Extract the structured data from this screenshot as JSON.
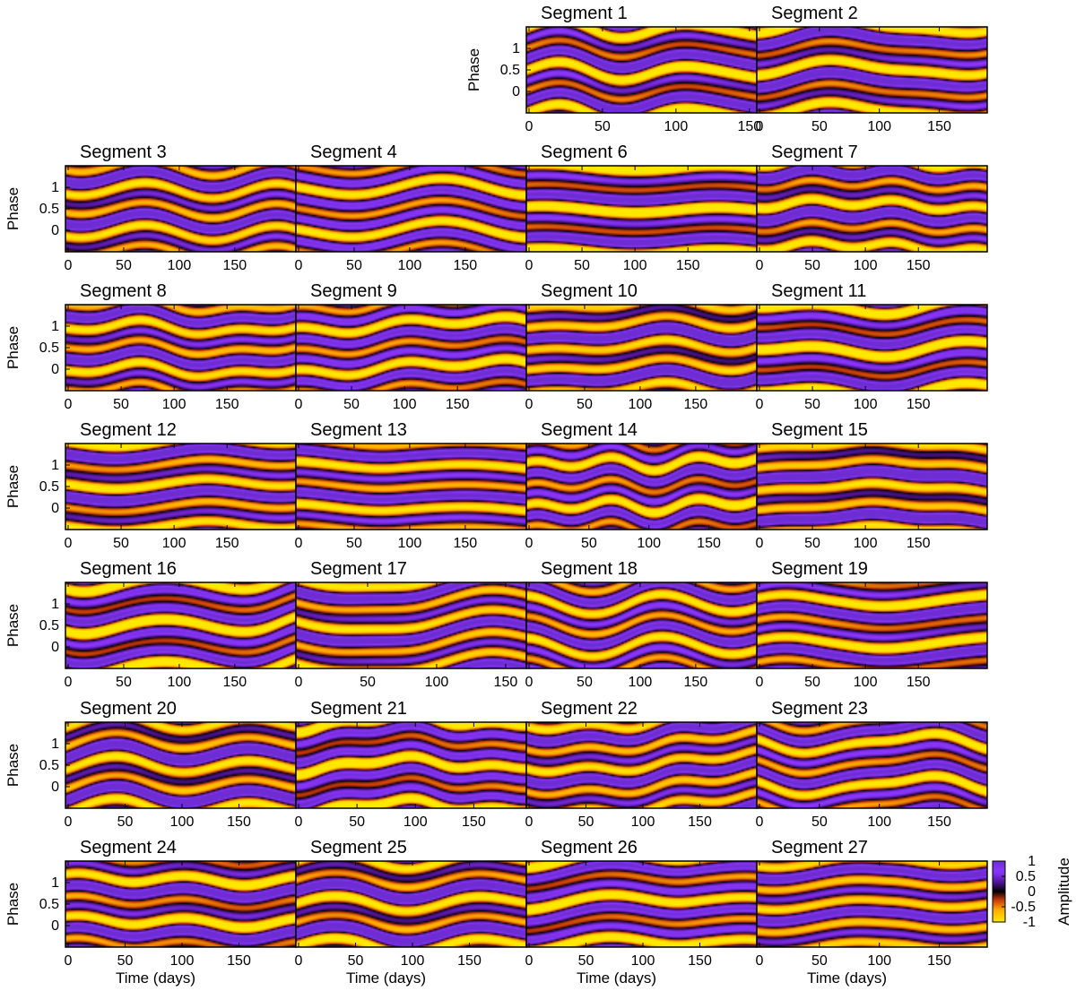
{
  "chart_data": {
    "type": "heatmap",
    "ylabel": "Phase",
    "xlabel": "Time (days)",
    "yticks": [
      0,
      0.5,
      1
    ],
    "ylim": [
      -0.5,
      1.5
    ],
    "colorbar": {
      "label": "Amplitude",
      "ticks": [
        1,
        0.5,
        0,
        -0.5,
        -1
      ],
      "range": [
        -1,
        1
      ],
      "colormap": [
        "#ffe000",
        "#ff9a00",
        "#b02a00",
        "#000000",
        "#4a1080",
        "#8a33ff",
        "#6a2fd0"
      ]
    },
    "panels": [
      {
        "title": "Segment 1",
        "row": 0,
        "col": 2,
        "duration": 155,
        "xticks": [
          0,
          50,
          100,
          150
        ],
        "show_ylabel": true,
        "show_xlabel": false,
        "seed": 1
      },
      {
        "title": "Segment 2",
        "row": 0,
        "col": 3,
        "duration": 190,
        "xticks": [
          0,
          50,
          100,
          150
        ],
        "show_ylabel": false,
        "show_xlabel": false,
        "seed": 2
      },
      {
        "title": "Segment 3",
        "row": 1,
        "col": 0,
        "duration": 205,
        "xticks": [
          0,
          50,
          100,
          150
        ],
        "show_ylabel": true,
        "show_xlabel": false,
        "seed": 3
      },
      {
        "title": "Segment 4",
        "row": 1,
        "col": 1,
        "duration": 205,
        "xticks": [
          0,
          50,
          100,
          150
        ],
        "show_ylabel": false,
        "show_xlabel": false,
        "seed": 4
      },
      {
        "title": "Segment 6",
        "row": 1,
        "col": 2,
        "duration": 215,
        "xticks": [
          0,
          50,
          100,
          150
        ],
        "show_ylabel": false,
        "show_xlabel": false,
        "seed": 6
      },
      {
        "title": "Segment 7",
        "row": 1,
        "col": 3,
        "duration": 215,
        "xticks": [
          0,
          50,
          100,
          150
        ],
        "show_ylabel": false,
        "show_xlabel": false,
        "seed": 7
      },
      {
        "title": "Segment 8",
        "row": 2,
        "col": 0,
        "duration": 215,
        "xticks": [
          0,
          50,
          100,
          150
        ],
        "show_ylabel": true,
        "show_xlabel": false,
        "seed": 8
      },
      {
        "title": "Segment 9",
        "row": 2,
        "col": 1,
        "duration": 215,
        "xticks": [
          0,
          50,
          100,
          150
        ],
        "show_ylabel": false,
        "show_xlabel": false,
        "seed": 9
      },
      {
        "title": "Segment 10",
        "row": 2,
        "col": 2,
        "duration": 205,
        "xticks": [
          0,
          50,
          100,
          150
        ],
        "show_ylabel": false,
        "show_xlabel": false,
        "seed": 10
      },
      {
        "title": "Segment 11",
        "row": 2,
        "col": 3,
        "duration": 215,
        "xticks": [
          0,
          50,
          100,
          150
        ],
        "show_ylabel": false,
        "show_xlabel": false,
        "seed": 11
      },
      {
        "title": "Segment 12",
        "row": 3,
        "col": 0,
        "duration": 215,
        "xticks": [
          0,
          50,
          100,
          150
        ],
        "show_ylabel": true,
        "show_xlabel": false,
        "seed": 12
      },
      {
        "title": "Segment 13",
        "row": 3,
        "col": 1,
        "duration": 205,
        "xticks": [
          0,
          50,
          100,
          150
        ],
        "show_ylabel": false,
        "show_xlabel": false,
        "seed": 13
      },
      {
        "title": "Segment 14",
        "row": 3,
        "col": 2,
        "duration": 190,
        "xticks": [
          0,
          50,
          100,
          150
        ],
        "show_ylabel": false,
        "show_xlabel": false,
        "seed": 14
      },
      {
        "title": "Segment 15",
        "row": 3,
        "col": 3,
        "duration": 215,
        "xticks": [
          0,
          50,
          100,
          150
        ],
        "show_ylabel": false,
        "show_xlabel": false,
        "seed": 15
      },
      {
        "title": "Segment 16",
        "row": 4,
        "col": 0,
        "duration": 205,
        "xticks": [
          0,
          50,
          100,
          150
        ],
        "show_ylabel": true,
        "show_xlabel": false,
        "seed": 16
      },
      {
        "title": "Segment 17",
        "row": 4,
        "col": 1,
        "duration": 165,
        "xticks": [
          0,
          50,
          100,
          150
        ],
        "show_ylabel": false,
        "show_xlabel": false,
        "seed": 17
      },
      {
        "title": "Segment 18",
        "row": 4,
        "col": 2,
        "duration": 205,
        "xticks": [
          0,
          50,
          100,
          150
        ],
        "show_ylabel": false,
        "show_xlabel": false,
        "seed": 18
      },
      {
        "title": "Segment 19",
        "row": 4,
        "col": 3,
        "duration": 215,
        "xticks": [
          0,
          50,
          100,
          150
        ],
        "show_ylabel": false,
        "show_xlabel": false,
        "seed": 19
      },
      {
        "title": "Segment 20",
        "row": 5,
        "col": 0,
        "duration": 200,
        "xticks": [
          0,
          50,
          100,
          150
        ],
        "show_ylabel": true,
        "show_xlabel": false,
        "seed": 20
      },
      {
        "title": "Segment 21",
        "row": 5,
        "col": 1,
        "duration": 195,
        "xticks": [
          0,
          50,
          100,
          150
        ],
        "show_ylabel": false,
        "show_xlabel": false,
        "seed": 21
      },
      {
        "title": "Segment 22",
        "row": 5,
        "col": 2,
        "duration": 200,
        "xticks": [
          0,
          50,
          100,
          150
        ],
        "show_ylabel": false,
        "show_xlabel": false,
        "seed": 22
      },
      {
        "title": "Segment 23",
        "row": 5,
        "col": 3,
        "duration": 190,
        "xticks": [
          0,
          50,
          100,
          150
        ],
        "show_ylabel": false,
        "show_xlabel": false,
        "seed": 23
      },
      {
        "title": "Segment 24",
        "row": 6,
        "col": 0,
        "duration": 200,
        "xticks": [
          0,
          50,
          100,
          150
        ],
        "show_ylabel": true,
        "show_xlabel": true,
        "seed": 24
      },
      {
        "title": "Segment 25",
        "row": 6,
        "col": 1,
        "duration": 200,
        "xticks": [
          0,
          50,
          100,
          150
        ],
        "show_ylabel": false,
        "show_xlabel": true,
        "seed": 25
      },
      {
        "title": "Segment 26",
        "row": 6,
        "col": 2,
        "duration": 200,
        "xticks": [
          0,
          50,
          100,
          150
        ],
        "show_ylabel": false,
        "show_xlabel": true,
        "seed": 26
      },
      {
        "title": "Segment 27",
        "row": 6,
        "col": 3,
        "duration": 190,
        "xticks": [
          0,
          50,
          100,
          150
        ],
        "show_ylabel": false,
        "show_xlabel": true,
        "seed": 27
      }
    ]
  }
}
